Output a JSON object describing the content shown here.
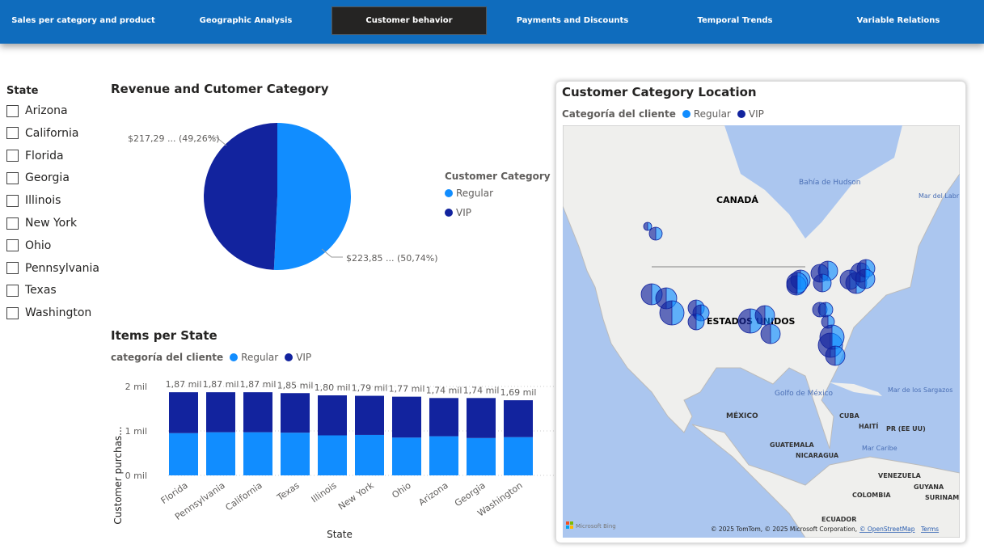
{
  "nav": {
    "tabs": [
      {
        "label": "Sales per category and product",
        "active": false
      },
      {
        "label": "Geographic Analysis",
        "active": false
      },
      {
        "label": "Customer behavior",
        "active": true
      },
      {
        "label": "Payments and Discounts",
        "active": false
      },
      {
        "label": "Temporal Trends",
        "active": false
      },
      {
        "label": "Variable Relations",
        "active": false
      }
    ]
  },
  "slicer": {
    "title": "State",
    "items": [
      "Arizona",
      "California",
      "Florida",
      "Georgia",
      "Illinois",
      "New York",
      "Ohio",
      "Pennsylvania",
      "Texas",
      "Washington"
    ]
  },
  "colors": {
    "regular": "#118dff",
    "vip": "#12239e",
    "nav": "#0f6cbd"
  },
  "pie": {
    "title": "Revenue and Cutomer Category",
    "legend_title": "Customer Category",
    "label_vip": "$217,29 ... (49,26%)",
    "label_regular": "$223,85 ... (50,74%)"
  },
  "bar": {
    "title": "Items per State",
    "legend_title": "categoría del cliente",
    "ytick_labels": [
      "0 mil",
      "1 mil",
      "2 mil"
    ]
  },
  "map": {
    "title": "Customer Category Location",
    "legend_title": "Categoría del cliente",
    "labels": {
      "canada": "CANADÁ",
      "usa": "ESTADOS UNIDOS",
      "mexico": "MÉXICO",
      "hudson": "Bahía de Hudson",
      "labrador": "Mar del Labr",
      "gulf": "Golfo de México",
      "sargasso": "Mar de los Sargazos",
      "cuba": "CUBA",
      "haiti": "HAITÍ",
      "pr": "PR (EE UU)",
      "caribbean": "Mar Caribe",
      "guatemala": "GUATEMALA",
      "nicaragua": "NICARAGUA",
      "venezuela": "VENEZUELA",
      "guyana": "GUYANA",
      "surinam": "SURINAM",
      "colombia": "COLOMBIA",
      "ecuador": "ECUADOR"
    },
    "bing": "Microsoft Bing",
    "copyright": "© 2025 TomTom, © 2025 Microsoft Corporation,",
    "osm": "© OpenStreetMap",
    "terms": "Terms"
  },
  "chart_data": [
    {
      "type": "pie",
      "title": "Revenue and Cutomer Category",
      "legend_title": "Customer Category",
      "categories": [
        "Regular",
        "VIP"
      ],
      "values_percent": [
        50.74,
        49.26
      ],
      "value_labels": [
        "$223,85 ...",
        "$217,29 ..."
      ],
      "legend": "right"
    },
    {
      "type": "bar",
      "stacked": true,
      "title": "Items per State",
      "xlabel": "State",
      "ylabel": "Customer purchas...",
      "categories": [
        "Florida",
        "Pennsylvania",
        "California",
        "Texas",
        "Illinois",
        "New York",
        "Ohio",
        "Arizona",
        "Georgia",
        "Washington"
      ],
      "totals_labels": [
        "1,87 mil",
        "1,87 mil",
        "1,87 mil",
        "1,85 mil",
        "1,80 mil",
        "1,79 mil",
        "1,77 mil",
        "1,74 mil",
        "1,74 mil",
        "1,69 mil"
      ],
      "series": [
        {
          "name": "Regular",
          "values": [
            950,
            970,
            970,
            960,
            900,
            910,
            850,
            880,
            840,
            860
          ]
        },
        {
          "name": "VIP",
          "values": [
            920,
            900,
            900,
            890,
            900,
            880,
            920,
            860,
            900,
            830
          ]
        }
      ],
      "ylim": [
        0,
        2000
      ],
      "grid": true,
      "legend": "top-left"
    }
  ]
}
